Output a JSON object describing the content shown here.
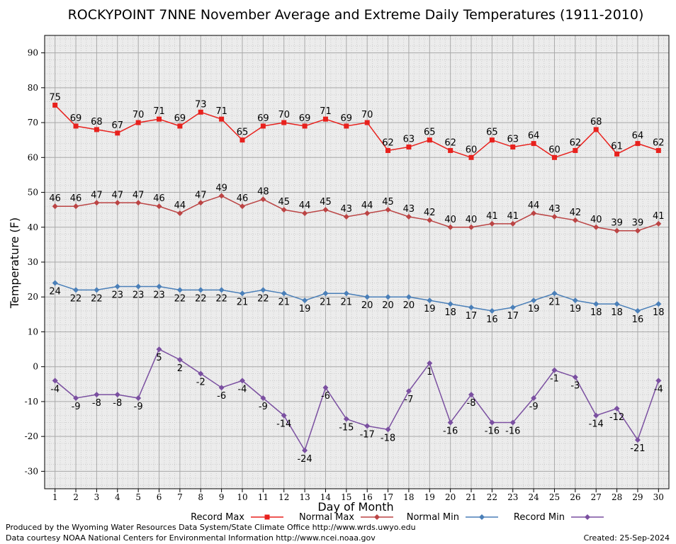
{
  "chart_data": {
    "type": "line",
    "title": "ROCKYPOINT 7NNE November Average and Extreme Daily Temperatures (1911-2010)",
    "xlabel": "Day of Month",
    "ylabel": "Temperature (F)",
    "ylim": [
      -35,
      95
    ],
    "xlim": [
      0.5,
      30.5
    ],
    "yticks": [
      -30,
      -20,
      -10,
      0,
      10,
      20,
      30,
      40,
      50,
      60,
      70,
      80,
      90
    ],
    "grid": true,
    "legend_position": "bottom",
    "x": [
      1,
      2,
      3,
      4,
      5,
      6,
      7,
      8,
      9,
      10,
      11,
      12,
      13,
      14,
      15,
      16,
      17,
      18,
      19,
      20,
      21,
      22,
      23,
      24,
      25,
      26,
      27,
      28,
      29,
      30
    ],
    "series": [
      {
        "name": "Record Max",
        "color": "#e8211d",
        "marker": "square",
        "values": [
          75,
          69,
          68,
          67,
          70,
          71,
          69,
          73,
          71,
          65,
          69,
          70,
          69,
          71,
          69,
          70,
          62,
          63,
          65,
          62,
          60,
          65,
          63,
          64,
          60,
          62,
          68,
          61,
          64,
          62
        ]
      },
      {
        "name": "Normal Max",
        "color": "#bb4444",
        "marker": "diamond",
        "values": [
          46,
          46,
          47,
          47,
          47,
          46,
          44,
          47,
          49,
          46,
          48,
          45,
          44,
          45,
          43,
          44,
          45,
          43,
          42,
          40,
          40,
          41,
          41,
          44,
          43,
          42,
          40,
          39,
          39,
          41
        ]
      },
      {
        "name": "Normal Min",
        "color": "#4a7fb8",
        "marker": "diamond",
        "values": [
          24,
          22,
          22,
          23,
          23,
          23,
          22,
          22,
          22,
          21,
          22,
          21,
          19,
          21,
          21,
          20,
          20,
          20,
          19,
          18,
          17,
          16,
          17,
          19,
          21,
          19,
          18,
          18,
          16,
          18
        ]
      },
      {
        "name": "Record Min",
        "color": "#7a4fa0",
        "marker": "diamond",
        "values": [
          -4,
          -9,
          -8,
          -8,
          -9,
          5,
          2,
          -2,
          -6,
          -4,
          -9,
          -14,
          -24,
          -6,
          -15,
          -17,
          -18,
          -7,
          1,
          -16,
          -8,
          -16,
          -16,
          -9,
          -1,
          -3,
          -14,
          -12,
          -21,
          -4
        ]
      }
    ]
  },
  "footer": {
    "left_line1": "Produced by the Wyoming Water Resources Data System/State Climate Office http://www.wrds.uwyo.edu",
    "left_line2": "Data courtesy NOAA National Centers for Environmental Information http://www.ncei.noaa.gov",
    "created": "Created:  25-Sep-2024"
  }
}
